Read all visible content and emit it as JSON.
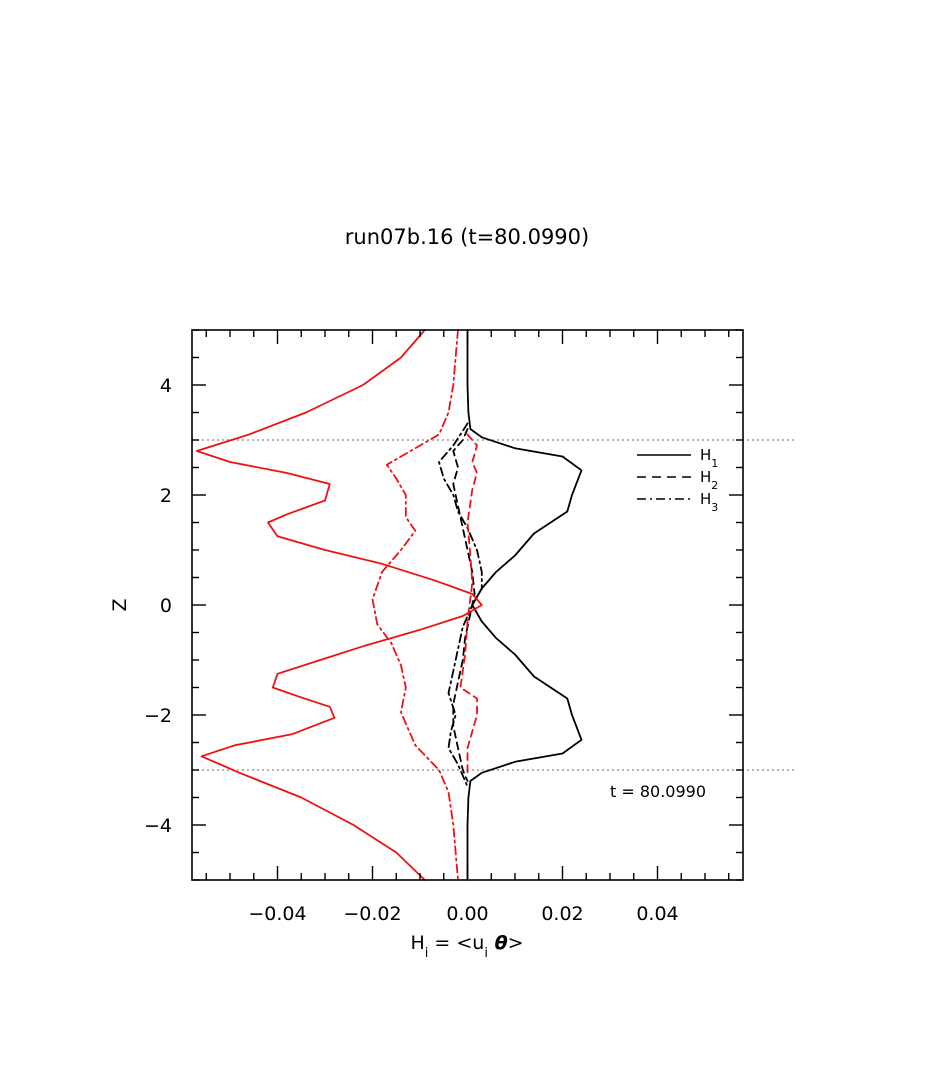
{
  "chart_data": {
    "type": "line",
    "title": "run07b.16 (t=80.0990)",
    "xlabel": {
      "main": "H",
      "sub": "i",
      "rest": " = <u",
      "sub2": "i",
      "theta": " θ",
      "end": ">"
    },
    "ylabel": "Z",
    "xlim": [
      -0.058,
      0.058
    ],
    "ylim": [
      -5,
      5
    ],
    "xticks": [
      -0.04,
      -0.02,
      0.0,
      0.02,
      0.04
    ],
    "xtick_labels": [
      "−0.04",
      "−0.02",
      "0.00",
      "0.02",
      "0.04"
    ],
    "yticks": [
      -4,
      -2,
      0,
      2,
      4
    ],
    "ytick_labels": [
      "−4",
      "−2",
      "0",
      "2",
      "4"
    ],
    "hlines": [
      3,
      -3
    ],
    "annotation": "t = 80.0990",
    "legend": {
      "position": "top-right",
      "entries": [
        {
          "base": "H",
          "sub": "1",
          "style": "solid"
        },
        {
          "base": "H",
          "sub": "2",
          "style": "dashed"
        },
        {
          "base": "H",
          "sub": "3",
          "style": "dashdot"
        }
      ]
    },
    "series": [
      {
        "name": "H1",
        "color": "#000000",
        "style": "solid",
        "points": [
          [
            0.0,
            5
          ],
          [
            0.0,
            4
          ],
          [
            0.0002,
            3.5
          ],
          [
            0.0006,
            3.2
          ],
          [
            0.003,
            3.05
          ],
          [
            0.01,
            2.85
          ],
          [
            0.02,
            2.7
          ],
          [
            0.024,
            2.45
          ],
          [
            0.022,
            2.0
          ],
          [
            0.021,
            1.7
          ],
          [
            0.014,
            1.3
          ],
          [
            0.01,
            0.9
          ],
          [
            0.006,
            0.6
          ],
          [
            0.003,
            0.3
          ],
          [
            0.001,
            0.0
          ],
          [
            0.003,
            -0.3
          ],
          [
            0.006,
            -0.6
          ],
          [
            0.01,
            -0.9
          ],
          [
            0.014,
            -1.3
          ],
          [
            0.021,
            -1.7
          ],
          [
            0.022,
            -2.0
          ],
          [
            0.024,
            -2.45
          ],
          [
            0.02,
            -2.7
          ],
          [
            0.01,
            -2.85
          ],
          [
            0.003,
            -3.05
          ],
          [
            0.0006,
            -3.2
          ],
          [
            0.0002,
            -3.5
          ],
          [
            0.0,
            -4
          ],
          [
            0.0,
            -5
          ]
        ]
      },
      {
        "name": "H2",
        "color": "#000000",
        "style": "dashed",
        "points": [
          [
            0.0,
            3.2
          ],
          [
            -0.001,
            3.0
          ],
          [
            -0.003,
            2.8
          ],
          [
            -0.002,
            2.5
          ],
          [
            -0.003,
            2.2
          ],
          [
            -0.002,
            1.8
          ],
          [
            -0.001,
            1.4
          ],
          [
            0.0,
            1.0
          ],
          [
            0.001,
            0.6
          ],
          [
            0.0015,
            0.2
          ],
          [
            0.0005,
            -0.2
          ],
          [
            -0.0005,
            -0.6
          ],
          [
            -0.001,
            -1.0
          ],
          [
            -0.002,
            -1.4
          ],
          [
            -0.003,
            -1.8
          ],
          [
            -0.003,
            -2.2
          ],
          [
            -0.002,
            -2.6
          ],
          [
            -0.001,
            -3.0
          ],
          [
            0.0,
            -3.2
          ]
        ]
      },
      {
        "name": "H3",
        "color": "#000000",
        "style": "dashdot",
        "points": [
          [
            0.0,
            3.3
          ],
          [
            -0.003,
            2.9
          ],
          [
            -0.006,
            2.6
          ],
          [
            -0.005,
            2.3
          ],
          [
            -0.003,
            2.0
          ],
          [
            -0.002,
            1.7
          ],
          [
            0.0,
            1.4
          ],
          [
            0.002,
            1.0
          ],
          [
            0.003,
            0.6
          ],
          [
            0.003,
            0.3
          ],
          [
            0.001,
            0.0
          ],
          [
            -0.001,
            -0.4
          ],
          [
            -0.002,
            -0.8
          ],
          [
            -0.003,
            -1.2
          ],
          [
            -0.004,
            -1.6
          ],
          [
            -0.0025,
            -2.0
          ],
          [
            -0.0035,
            -2.3
          ],
          [
            -0.004,
            -2.6
          ],
          [
            -0.002,
            -2.9
          ],
          [
            0.0,
            -3.3
          ]
        ]
      },
      {
        "name": "",
        "color": "#ee1111",
        "style": "solid",
        "points": [
          [
            -0.009,
            5.0
          ],
          [
            -0.014,
            4.5
          ],
          [
            -0.022,
            4.0
          ],
          [
            -0.034,
            3.5
          ],
          [
            -0.046,
            3.1
          ],
          [
            -0.057,
            2.8
          ],
          [
            -0.05,
            2.6
          ],
          [
            -0.038,
            2.4
          ],
          [
            -0.029,
            2.2
          ],
          [
            -0.03,
            1.9
          ],
          [
            -0.038,
            1.65
          ],
          [
            -0.042,
            1.5
          ],
          [
            -0.04,
            1.25
          ],
          [
            -0.03,
            1.0
          ],
          [
            -0.018,
            0.75
          ],
          [
            -0.007,
            0.45
          ],
          [
            0.001,
            0.2
          ],
          [
            0.003,
            0.0
          ],
          [
            -0.001,
            -0.2
          ],
          [
            -0.01,
            -0.45
          ],
          [
            -0.022,
            -0.75
          ],
          [
            -0.031,
            -1.0
          ],
          [
            -0.04,
            -1.25
          ],
          [
            -0.041,
            -1.5
          ],
          [
            -0.036,
            -1.65
          ],
          [
            -0.029,
            -1.85
          ],
          [
            -0.028,
            -2.05
          ],
          [
            -0.037,
            -2.35
          ],
          [
            -0.049,
            -2.55
          ],
          [
            -0.056,
            -2.75
          ],
          [
            -0.048,
            -3.05
          ],
          [
            -0.035,
            -3.5
          ],
          [
            -0.024,
            -4.0
          ],
          [
            -0.015,
            -4.5
          ],
          [
            -0.009,
            -5.0
          ]
        ]
      },
      {
        "name": "",
        "color": "#ee1111",
        "style": "dashdot",
        "points": [
          [
            -0.002,
            5.0
          ],
          [
            -0.0025,
            4.5
          ],
          [
            -0.003,
            4.0
          ],
          [
            -0.004,
            3.5
          ],
          [
            -0.006,
            3.1
          ],
          [
            -0.012,
            2.8
          ],
          [
            -0.017,
            2.55
          ],
          [
            -0.015,
            2.3
          ],
          [
            -0.013,
            2.0
          ],
          [
            -0.013,
            1.6
          ],
          [
            -0.011,
            1.35
          ],
          [
            -0.014,
            1.0
          ],
          [
            -0.018,
            0.6
          ],
          [
            -0.02,
            0.1
          ],
          [
            -0.019,
            -0.35
          ],
          [
            -0.016,
            -0.7
          ],
          [
            -0.014,
            -1.1
          ],
          [
            -0.013,
            -1.5
          ],
          [
            -0.014,
            -1.95
          ],
          [
            -0.012,
            -2.35
          ],
          [
            -0.011,
            -2.55
          ],
          [
            -0.006,
            -3.0
          ],
          [
            -0.004,
            -3.4
          ],
          [
            -0.003,
            -4.0
          ],
          [
            -0.002,
            -5.0
          ]
        ]
      },
      {
        "name": "",
        "color": "#ee1111",
        "style": "dashed",
        "points": [
          [
            0.0,
            3.1
          ],
          [
            0.002,
            2.9
          ],
          [
            0.001,
            2.6
          ],
          [
            0.002,
            2.4
          ],
          [
            0.001,
            2.1
          ],
          [
            0.0,
            1.5
          ],
          [
            0.0005,
            1.0
          ],
          [
            0.001,
            0.4
          ],
          [
            0.0,
            -0.3
          ],
          [
            -0.0005,
            -0.9
          ],
          [
            -0.0015,
            -1.5
          ],
          [
            0.002,
            -1.7
          ],
          [
            0.002,
            -2.0
          ],
          [
            0.001,
            -2.3
          ],
          [
            0.0,
            -2.6
          ],
          [
            0.0,
            -3.1
          ]
        ]
      }
    ]
  }
}
